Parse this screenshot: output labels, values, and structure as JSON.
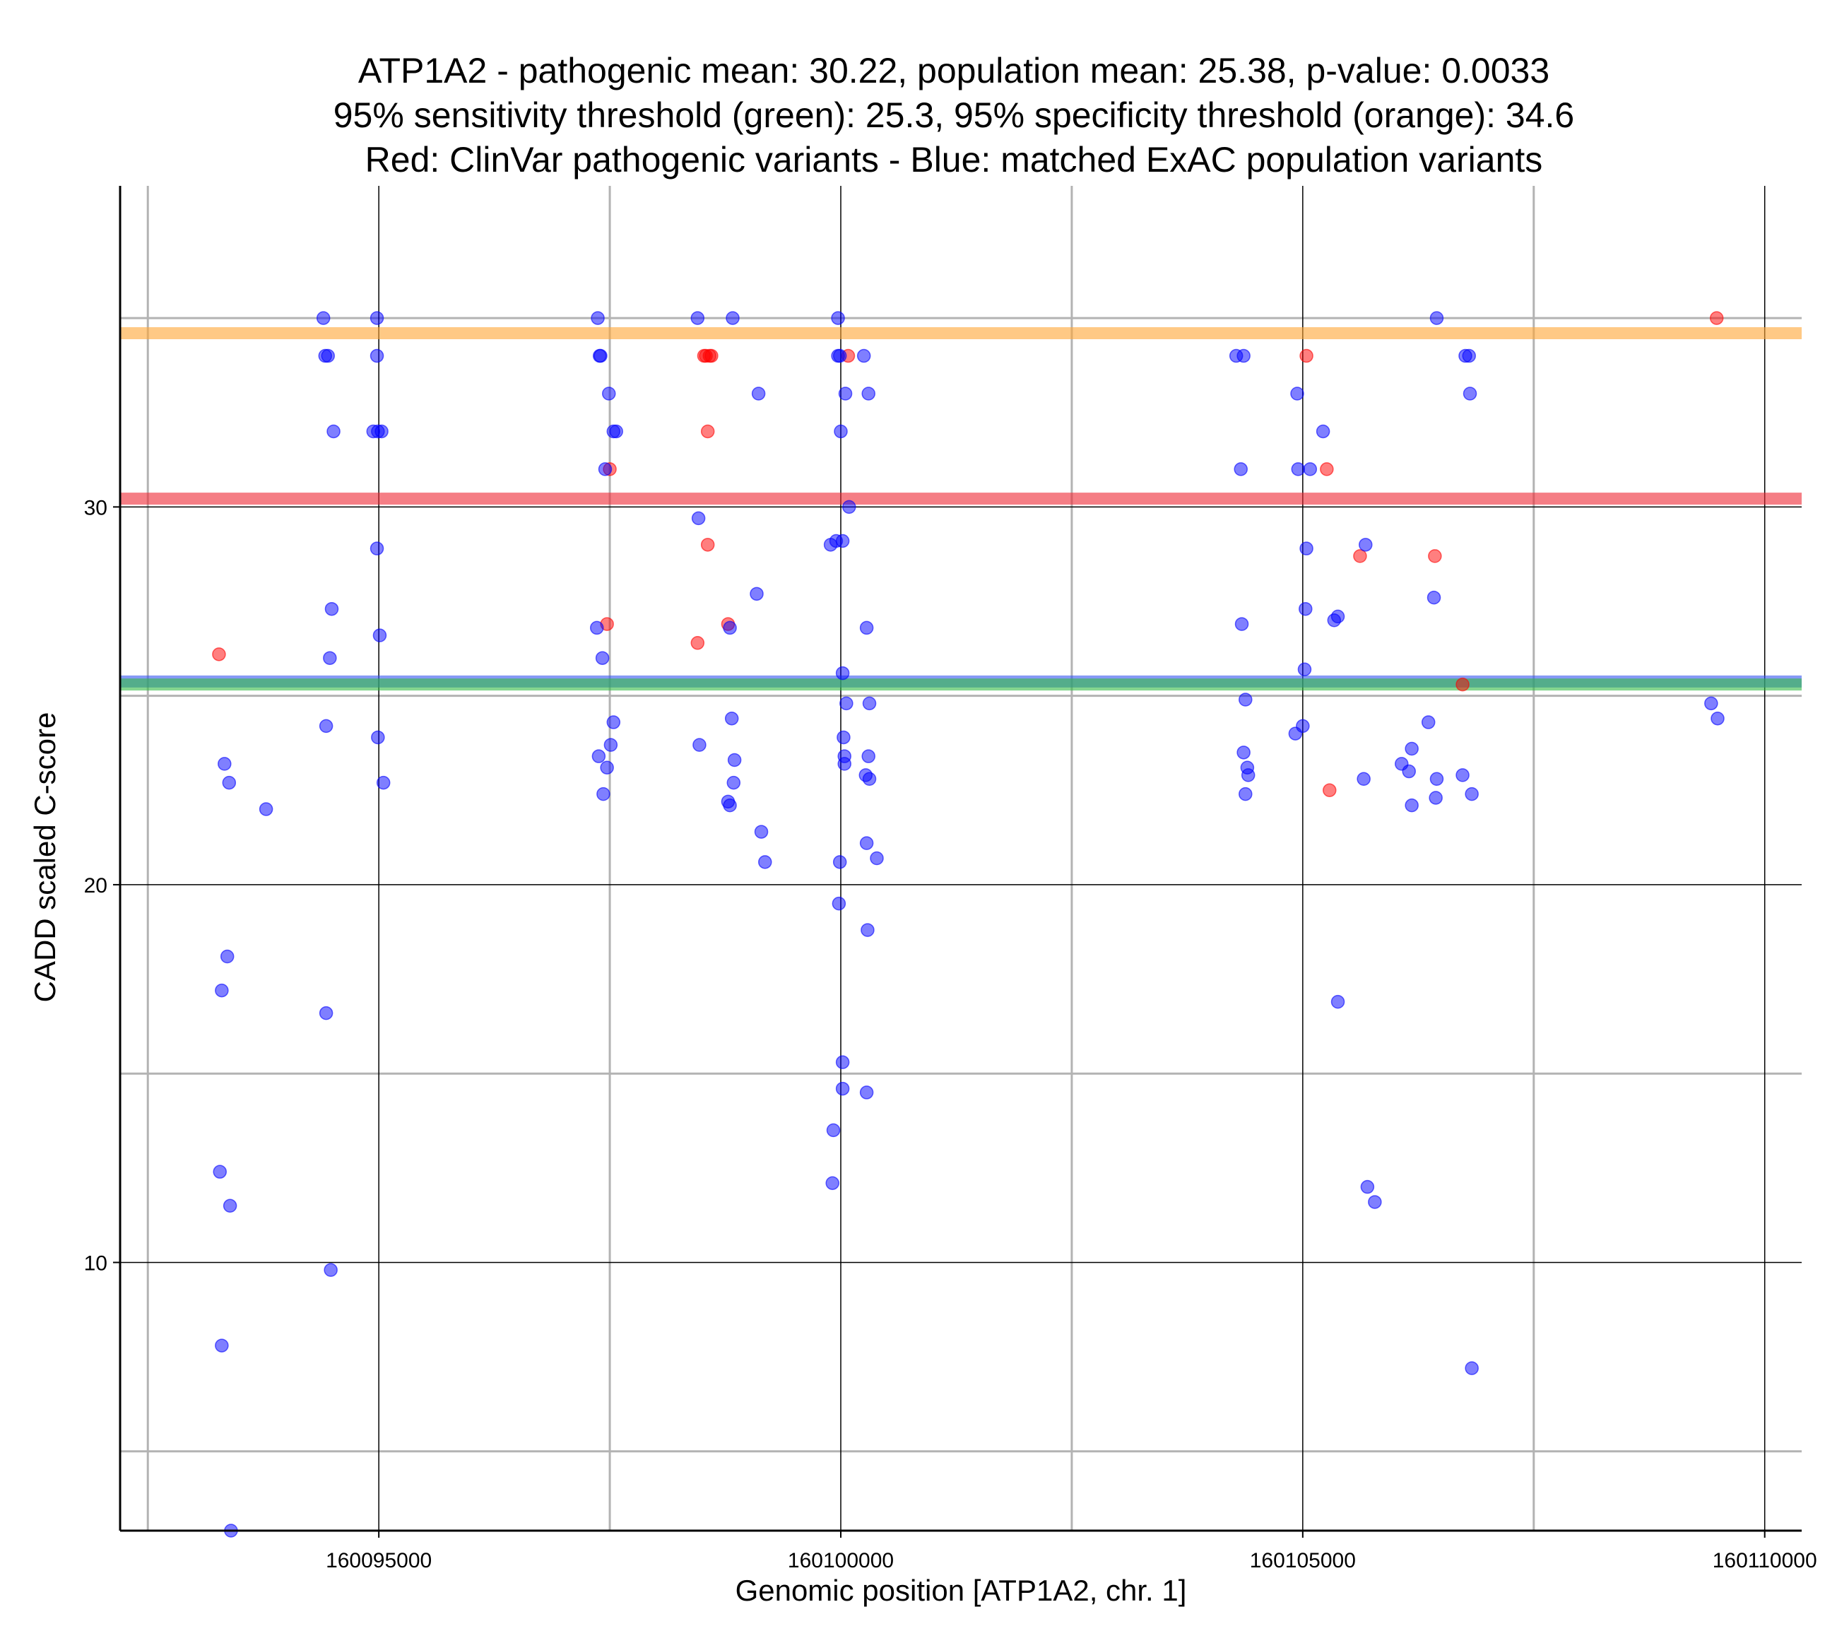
{
  "chart_data": {
    "type": "scatter",
    "title": [
      "ATP1A2 - pathogenic mean: 30.22, population mean: 25.38, p-value: 0.0033",
      "95% sensitivity threshold (green): 25.3, 95% specificity threshold (orange): 34.6",
      "Red: ClinVar pathogenic variants - Blue: matched ExAC population variants"
    ],
    "xlabel": "Genomic position [ATP1A2, chr. 1]",
    "ylabel": "CADD scaled C-score",
    "xlim": [
      160092200,
      160110400
    ],
    "ylim": [
      2.9,
      38.5
    ],
    "x_major_ticks": [
      160095000,
      160100000,
      160105000,
      160110000
    ],
    "x_tick_labels": [
      "160095000",
      "160100000",
      "160105000",
      "160110000"
    ],
    "x_minor_ticks": [
      160092500,
      160097500,
      160102500,
      160107500
    ],
    "y_major_ticks": [
      10,
      20,
      30
    ],
    "y_tick_labels": [
      "10",
      "20",
      "30"
    ],
    "y_minor_ticks": [
      5,
      15,
      25,
      35
    ],
    "hlines": [
      {
        "name": "specificity threshold (orange)",
        "value": 34.6,
        "color": "#FFA533"
      },
      {
        "name": "pathogenic mean (red)",
        "value": 30.22,
        "color": "#EE2833"
      },
      {
        "name": "population mean (blue)",
        "value": 25.38,
        "color": "#3355EE"
      },
      {
        "name": "sensitivity threshold (green)",
        "value": 25.3,
        "color": "#33BB44"
      }
    ],
    "series": [
      {
        "name": "ClinVar pathogenic variants",
        "color": "#FF0000",
        "points": [
          [
            160093270,
            26.1
          ],
          [
            160097470,
            26.9
          ],
          [
            160097500,
            31.0
          ],
          [
            160098450,
            26.4
          ],
          [
            160098520,
            34.0
          ],
          [
            160098540,
            34.0
          ],
          [
            160098560,
            32.0
          ],
          [
            160098580,
            34.0
          ],
          [
            160098600,
            34.0
          ],
          [
            160098560,
            29.0
          ],
          [
            160098780,
            26.9
          ],
          [
            160100080,
            34.0
          ],
          [
            160105040,
            34.0
          ],
          [
            160105260,
            31.0
          ],
          [
            160105290,
            22.5
          ],
          [
            160105620,
            28.7
          ],
          [
            160106430,
            28.7
          ],
          [
            160109480,
            35.0
          ],
          [
            160106730,
            25.3
          ]
        ]
      },
      {
        "name": "matched ExAC population variants",
        "color": "#0000FF",
        "points": [
          [
            160093280,
            12.4
          ],
          [
            160093300,
            17.2
          ],
          [
            160093300,
            7.8
          ],
          [
            160093330,
            23.2
          ],
          [
            160093360,
            18.1
          ],
          [
            160093380,
            22.7
          ],
          [
            160093390,
            11.5
          ],
          [
            160093400,
            2.9
          ],
          [
            160093780,
            22.0
          ],
          [
            160094400,
            35.0
          ],
          [
            160094420,
            34.0
          ],
          [
            160094430,
            24.2
          ],
          [
            160094430,
            16.6
          ],
          [
            160094450,
            34.0
          ],
          [
            160094470,
            26.0
          ],
          [
            160094480,
            9.8
          ],
          [
            160094490,
            27.3
          ],
          [
            160094510,
            32.0
          ],
          [
            160094940,
            32.0
          ],
          [
            160094980,
            35.0
          ],
          [
            160094980,
            34.0
          ],
          [
            160094980,
            28.9
          ],
          [
            160094990,
            23.9
          ],
          [
            160094990,
            32.0
          ],
          [
            160095010,
            26.6
          ],
          [
            160095030,
            32.0
          ],
          [
            160095050,
            22.7
          ],
          [
            160097360,
            26.8
          ],
          [
            160097370,
            35.0
          ],
          [
            160097380,
            23.4
          ],
          [
            160097390,
            34.0
          ],
          [
            160097400,
            34.0
          ],
          [
            160097420,
            26.0
          ],
          [
            160097430,
            22.4
          ],
          [
            160097450,
            31.0
          ],
          [
            160097470,
            23.1
          ],
          [
            160097490,
            33.0
          ],
          [
            160097510,
            23.7
          ],
          [
            160097540,
            24.3
          ],
          [
            160097540,
            32.0
          ],
          [
            160097570,
            32.0
          ],
          [
            160098450,
            35.0
          ],
          [
            160098460,
            29.7
          ],
          [
            160098470,
            23.7
          ],
          [
            160098780,
            22.2
          ],
          [
            160098800,
            22.1
          ],
          [
            160098800,
            26.8
          ],
          [
            160098820,
            24.4
          ],
          [
            160098830,
            35.0
          ],
          [
            160098840,
            22.7
          ],
          [
            160098850,
            23.3
          ],
          [
            160099090,
            27.7
          ],
          [
            160099110,
            33.0
          ],
          [
            160099140,
            21.4
          ],
          [
            160099180,
            20.6
          ],
          [
            160099890,
            29.0
          ],
          [
            160099910,
            12.1
          ],
          [
            160099920,
            13.5
          ],
          [
            160099950,
            29.1
          ],
          [
            160099970,
            35.0
          ],
          [
            160099970,
            34.0
          ],
          [
            160099990,
            34.0
          ],
          [
            160099980,
            19.5
          ],
          [
            160099990,
            20.6
          ],
          [
            160100000,
            32.0
          ],
          [
            160100020,
            14.6
          ],
          [
            160100020,
            15.3
          ],
          [
            160100020,
            29.1
          ],
          [
            160100020,
            25.6
          ],
          [
            160100030,
            23.9
          ],
          [
            160100040,
            23.4
          ],
          [
            160100040,
            23.2
          ],
          [
            160100050,
            33.0
          ],
          [
            160100060,
            24.8
          ],
          [
            160100090,
            30.0
          ],
          [
            160100250,
            34.0
          ],
          [
            160100270,
            22.9
          ],
          [
            160100280,
            26.8
          ],
          [
            160100280,
            21.1
          ],
          [
            160100280,
            14.5
          ],
          [
            160100290,
            18.8
          ],
          [
            160100300,
            23.4
          ],
          [
            160100300,
            33.0
          ],
          [
            160100310,
            24.8
          ],
          [
            160100310,
            22.8
          ],
          [
            160100390,
            20.7
          ],
          [
            160104280,
            34.0
          ],
          [
            160104330,
            31.0
          ],
          [
            160104340,
            26.9
          ],
          [
            160104360,
            23.5
          ],
          [
            160104360,
            34.0
          ],
          [
            160104380,
            24.9
          ],
          [
            160104380,
            22.4
          ],
          [
            160104400,
            23.1
          ],
          [
            160104410,
            22.9
          ],
          [
            160104920,
            24.0
          ],
          [
            160104940,
            33.0
          ],
          [
            160104950,
            31.0
          ],
          [
            160105000,
            24.2
          ],
          [
            160105020,
            25.7
          ],
          [
            160105030,
            27.3
          ],
          [
            160105040,
            28.9
          ],
          [
            160105080,
            31.0
          ],
          [
            160105220,
            32.0
          ],
          [
            160105340,
            27.0
          ],
          [
            160105380,
            16.9
          ],
          [
            160105380,
            27.1
          ],
          [
            160105660,
            22.8
          ],
          [
            160105680,
            29.0
          ],
          [
            160105700,
            12.0
          ],
          [
            160105780,
            11.6
          ],
          [
            160106070,
            23.2
          ],
          [
            160106150,
            23.0
          ],
          [
            160106180,
            23.6
          ],
          [
            160106180,
            22.1
          ],
          [
            160106360,
            24.3
          ],
          [
            160106420,
            27.6
          ],
          [
            160106440,
            22.3
          ],
          [
            160106450,
            35.0
          ],
          [
            160106450,
            22.8
          ],
          [
            160106730,
            22.9
          ],
          [
            160106760,
            34.0
          ],
          [
            160106800,
            34.0
          ],
          [
            160106810,
            33.0
          ],
          [
            160106830,
            22.4
          ],
          [
            160106830,
            7.2
          ],
          [
            160109420,
            24.8
          ],
          [
            160109490,
            24.4
          ]
        ]
      }
    ]
  }
}
